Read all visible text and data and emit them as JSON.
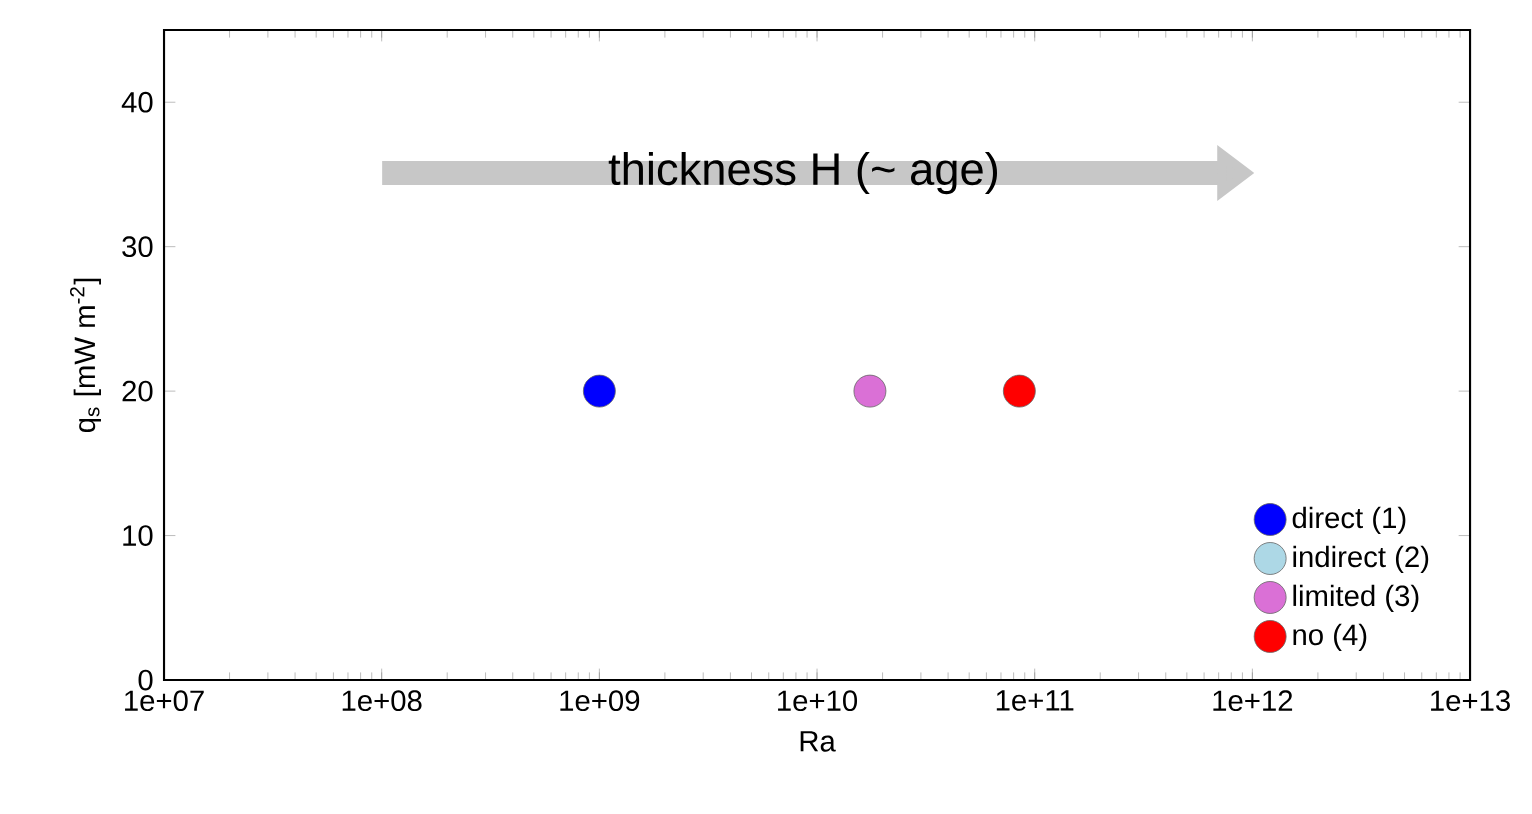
{
  "chart_data": {
    "type": "scatter",
    "xlabel": "Ra",
    "ylabel": "q$_{s}$ [mW m$^{-2}$]",
    "annotations": [
      "thickness H (~ age)"
    ],
    "log": "x",
    "xlim": [
      10000000.0,
      10000000000000.0
    ],
    "ylim": [
      0,
      45
    ],
    "xticks": [
      {
        "value": 10000000.0,
        "label": "1e+07"
      },
      {
        "value": 100000000.0,
        "label": "1e+08"
      },
      {
        "value": 1000000000.0,
        "label": "1e+09"
      },
      {
        "value": 10000000000.0,
        "label": "1e+10"
      },
      {
        "value": 100000000000.0,
        "label": "1e+11"
      },
      {
        "value": 1000000000000.0,
        "label": "1e+12"
      },
      {
        "value": 10000000000000.0,
        "label": "1e+13"
      }
    ],
    "yticks": [
      0,
      10,
      20,
      30,
      40
    ],
    "marker": "circle",
    "grid": false,
    "legend": "bottom right",
    "series": [
      {
        "name": "direct (1)",
        "color": "#0000ff",
        "x": [
          1000000000.0
        ],
        "values": [
          20
        ]
      },
      {
        "name": "indirect (2)",
        "color": "#add8e6",
        "x": [
          null
        ],
        "values": [
          null
        ]
      },
      {
        "name": "limited (3)",
        "color": "#da70d6",
        "x": [
          17500000000.0
        ],
        "values": [
          20
        ]
      },
      {
        "name": "no (4)",
        "color": "#ff0000",
        "x": [
          85000000000.0
        ],
        "values": [
          20
        ]
      }
    ]
  }
}
